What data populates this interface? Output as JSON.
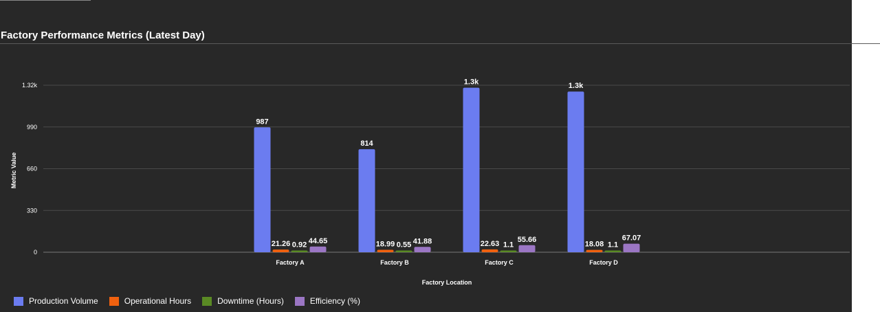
{
  "page": {
    "title": "Factory Performance Metrics (Latest Day)"
  },
  "chart_data": {
    "type": "bar",
    "title": "Factory Performance Metrics (Latest Day)",
    "xlabel": "Factory Location",
    "ylabel": "Metric Value",
    "categories": [
      "Factory A",
      "Factory B",
      "Factory C",
      "Factory D"
    ],
    "ylim": [
      0,
      1320
    ],
    "yticks": [
      0,
      330,
      660,
      990,
      1320
    ],
    "ytick_labels": [
      "0",
      "330",
      "660",
      "990",
      "1.32k"
    ],
    "grid": true,
    "legend_position": "bottom-left",
    "series": [
      {
        "name": "Production Volume",
        "color": "#6b7cf0",
        "values": [
          987,
          814,
          1300,
          1270
        ],
        "labels": [
          "987",
          "814",
          "1.3k",
          "1.3k"
        ]
      },
      {
        "name": "Operational Hours",
        "color": "#f0610f",
        "values": [
          21.26,
          18.99,
          22.63,
          18.08
        ],
        "labels": [
          "21.26",
          "18.99",
          "22.63",
          "18.08"
        ]
      },
      {
        "name": "Downtime (Hours)",
        "color": "#5a8a24",
        "values": [
          0.92,
          0.55,
          1.1,
          1.1
        ],
        "labels": [
          "0.92",
          "0.55",
          "1.1",
          "1.1"
        ]
      },
      {
        "name": "Efficiency (%)",
        "color": "#9b76c4",
        "values": [
          44.65,
          41.88,
          55.66,
          67.07
        ],
        "labels": [
          "44.65",
          "41.88",
          "55.66",
          "67.07"
        ]
      }
    ]
  }
}
